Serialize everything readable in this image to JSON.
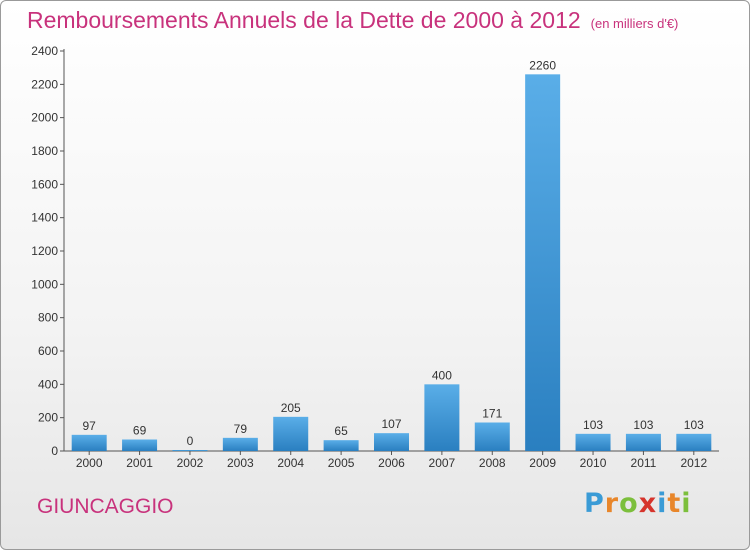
{
  "header": {
    "title": "Remboursements Annuels de la Dette de 2000 à 2012",
    "unit": "(en milliers d'€)"
  },
  "footer": {
    "commune": "GIUNCAGGIO",
    "logo_letters": [
      "P",
      "r",
      "o",
      "x",
      "i",
      "t",
      "i"
    ]
  },
  "chart_data": {
    "type": "bar",
    "title": "Remboursements Annuels de la Dette de 2000 à 2012",
    "subtitle": "(en milliers d'€)",
    "xlabel": "",
    "ylabel": "",
    "categories": [
      "2000",
      "2001",
      "2002",
      "2003",
      "2004",
      "2005",
      "2006",
      "2007",
      "2008",
      "2009",
      "2010",
      "2011",
      "2012"
    ],
    "values": [
      97,
      69,
      0,
      79,
      205,
      65,
      107,
      400,
      171,
      2260,
      103,
      103,
      103
    ],
    "data_labels": [
      "97",
      "69",
      "0",
      "79",
      "205",
      "65",
      "107",
      "400",
      "171",
      "2260",
      "103",
      "103",
      "103"
    ],
    "ylim": [
      0,
      2400
    ],
    "yticks": [
      0,
      200,
      400,
      600,
      800,
      1000,
      1200,
      1400,
      1600,
      1800,
      2000,
      2200,
      2400
    ],
    "grid": false,
    "bar_color_top": "#5aaee8",
    "bar_color_bottom": "#2a7fc0"
  }
}
